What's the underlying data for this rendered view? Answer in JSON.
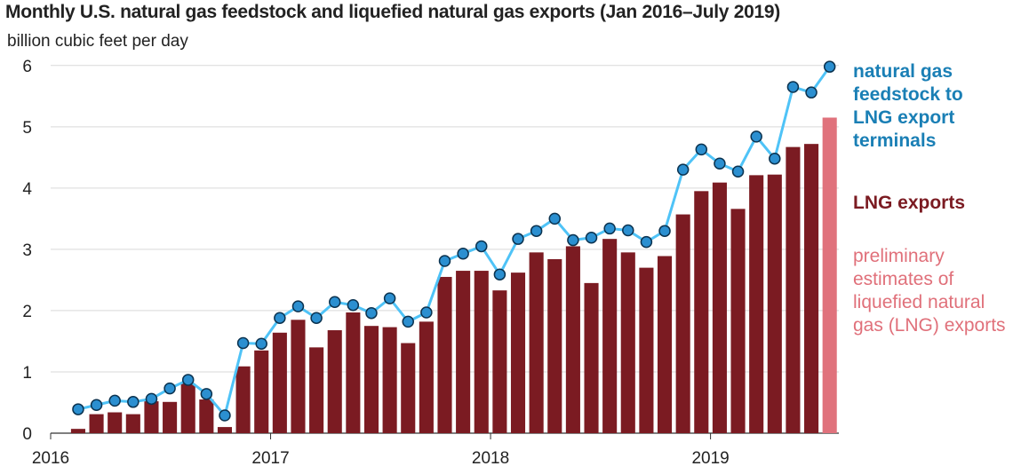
{
  "title": "Monthly U.S. natural gas feedstock and liquefied natural gas exports (Jan 2016–July 2019)",
  "subtitle": "billion cubic feet per day",
  "legend": {
    "feedstock": "natural gas feedstock to LNG export terminals",
    "lng": "LNG exports",
    "preliminary": "preliminary estimates of liquefied natural gas (LNG) exports"
  },
  "colors": {
    "lng_bar": "#7b1b22",
    "preliminary_bar": "#e0727c",
    "feedstock_line": "#4fc3f7",
    "feedstock_marker": "#2b8fd0",
    "feedstock_label": "#1a7fb5",
    "grid": "#d9d9d9"
  },
  "chart_data": {
    "type": "bar+line",
    "x_start": "2016-01",
    "x_end": "2019-07",
    "y_ticks": [
      0,
      1,
      2,
      3,
      4,
      5,
      6
    ],
    "x_tick_labels": [
      "2016",
      "2017",
      "2018",
      "2019"
    ],
    "ylim": [
      0,
      6.2
    ],
    "grid": "horizontal",
    "legend_placement": "right",
    "series": [
      {
        "name": "LNG exports",
        "type": "bar",
        "months": [
          "2016-01",
          "2016-02",
          "2016-03",
          "2016-04",
          "2016-05",
          "2016-06",
          "2016-07",
          "2016-08",
          "2016-09",
          "2016-10",
          "2016-11",
          "2016-12",
          "2017-01",
          "2017-02",
          "2017-03",
          "2017-04",
          "2017-05",
          "2017-06",
          "2017-07",
          "2017-08",
          "2017-09",
          "2017-10",
          "2017-11",
          "2017-12",
          "2018-01",
          "2018-02",
          "2018-03",
          "2018-04",
          "2018-05",
          "2018-06",
          "2018-07",
          "2018-08",
          "2018-09",
          "2018-10",
          "2018-11",
          "2018-12",
          "2019-01",
          "2019-02",
          "2019-03",
          "2019-04",
          "2019-05",
          "2019-06"
        ],
        "values": [
          0.0,
          0.07,
          0.31,
          0.34,
          0.31,
          0.52,
          0.51,
          0.81,
          0.55,
          0.1,
          1.09,
          1.35,
          1.64,
          1.85,
          1.4,
          1.68,
          1.97,
          1.75,
          1.73,
          1.47,
          1.82,
          2.55,
          2.65,
          2.65,
          2.33,
          2.62,
          2.95,
          2.84,
          3.05,
          2.45,
          3.17,
          2.95,
          2.7,
          2.89,
          3.57,
          3.95,
          4.09,
          3.66,
          4.21,
          4.22,
          4.67,
          4.72
        ]
      },
      {
        "name": "preliminary estimates of liquefied natural gas (LNG) exports",
        "type": "bar",
        "months": [
          "2019-07"
        ],
        "values": [
          5.15
        ]
      },
      {
        "name": "natural gas feedstock to LNG export terminals",
        "type": "line",
        "months": [
          "2016-02",
          "2016-03",
          "2016-04",
          "2016-05",
          "2016-06",
          "2016-07",
          "2016-08",
          "2016-09",
          "2016-10",
          "2016-11",
          "2016-12",
          "2017-01",
          "2017-02",
          "2017-03",
          "2017-04",
          "2017-05",
          "2017-06",
          "2017-07",
          "2017-08",
          "2017-09",
          "2017-10",
          "2017-11",
          "2017-12",
          "2018-01",
          "2018-02",
          "2018-03",
          "2018-04",
          "2018-05",
          "2018-06",
          "2018-07",
          "2018-08",
          "2018-09",
          "2018-10",
          "2018-11",
          "2018-12",
          "2019-01",
          "2019-02",
          "2019-03",
          "2019-04",
          "2019-05",
          "2019-06",
          "2019-07"
        ],
        "values": [
          0.39,
          0.46,
          0.53,
          0.51,
          0.56,
          0.73,
          0.87,
          0.64,
          0.29,
          1.47,
          1.46,
          1.88,
          2.07,
          1.88,
          2.14,
          2.09,
          1.96,
          2.2,
          1.82,
          1.97,
          2.81,
          2.93,
          3.05,
          2.59,
          3.17,
          3.3,
          3.5,
          3.15,
          3.19,
          3.34,
          3.31,
          3.12,
          3.3,
          4.3,
          4.63,
          4.4,
          4.27,
          4.84,
          4.48,
          5.65,
          5.56,
          5.98
        ]
      }
    ]
  }
}
